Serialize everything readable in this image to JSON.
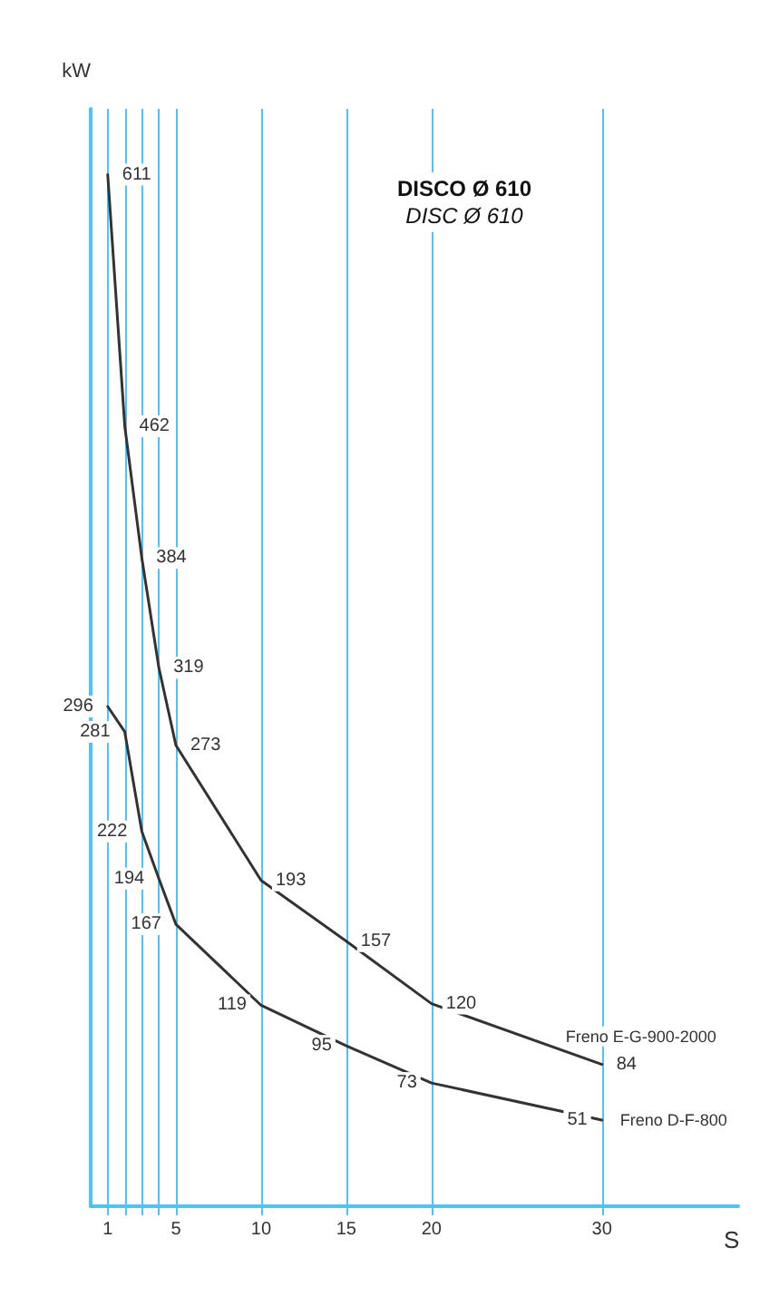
{
  "chart_data": {
    "type": "line",
    "title": "DISCO Ø 610",
    "subtitle": "DISC Ø 610",
    "xlabel": "S",
    "ylabel": "kW",
    "x": [
      1,
      2,
      3,
      4,
      5,
      10,
      15,
      20,
      30
    ],
    "series": [
      {
        "name": "Freno E-G-900-2000",
        "color": "#333333",
        "values": [
          611,
          462,
          384,
          319,
          273,
          193,
          157,
          120,
          84
        ]
      },
      {
        "name": "Freno D-F-800",
        "color": "#333333",
        "values": [
          296,
          281,
          222,
          194,
          167,
          119,
          95,
          73,
          51
        ]
      }
    ],
    "xlim": [
      0,
      38
    ],
    "xticks": [
      1,
      {
        "value": 2,
        "label": null
      },
      {
        "value": 3,
        "label": null
      },
      {
        "value": 4,
        "label": null
      },
      5,
      10,
      15,
      20,
      30
    ],
    "ylim": [
      0,
      650
    ],
    "tick_labels": "x",
    "grid": "x",
    "data_labels": true,
    "marker": "none",
    "line_style": "solid"
  }
}
